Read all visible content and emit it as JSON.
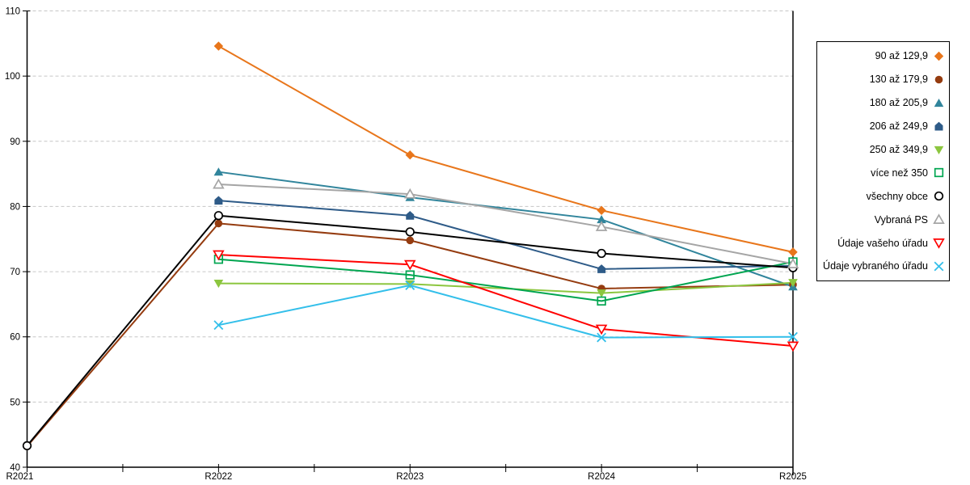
{
  "chart_data": {
    "type": "line",
    "title": "",
    "xlabel": "",
    "ylabel": "",
    "categories": [
      "R2021",
      "R2022",
      "R2023",
      "R2024",
      "R2025"
    ],
    "ylim": [
      40,
      110
    ],
    "ytick_step": 10,
    "yticks": [
      40,
      50,
      60,
      70,
      80,
      90,
      100,
      110
    ],
    "grid": "horizontal-dashed",
    "grid_color": "#c6c6c6",
    "axis_color": "#000000",
    "legend_position": "right",
    "series": [
      {
        "name": "90 až 129,9",
        "color": "#e8761b",
        "marker": "diamond",
        "filled": true,
        "values": [
          null,
          104.6,
          87.9,
          79.4,
          73.0
        ]
      },
      {
        "name": "130 až 179,9",
        "color": "#953c10",
        "marker": "circle",
        "filled": true,
        "values": [
          43.2,
          77.4,
          74.8,
          67.4,
          68.0
        ]
      },
      {
        "name": "180 až 205,9",
        "color": "#31859c",
        "marker": "triangle",
        "filled": true,
        "values": [
          null,
          85.3,
          81.4,
          78.0,
          67.7
        ]
      },
      {
        "name": "206 až 249,9",
        "color": "#2e5b88",
        "marker": "pentagon",
        "filled": true,
        "values": [
          null,
          80.9,
          78.6,
          70.4,
          70.9
        ]
      },
      {
        "name": "250 až 349,9",
        "color": "#8cc63f",
        "marker": "triangle-down",
        "filled": true,
        "values": [
          null,
          68.2,
          68.1,
          66.7,
          68.3
        ]
      },
      {
        "name": "více než 350",
        "color": "#00a550",
        "marker": "square",
        "filled": false,
        "values": [
          null,
          71.9,
          69.5,
          65.5,
          71.5
        ]
      },
      {
        "name": "všechny obce",
        "color": "#000000",
        "marker": "circle",
        "filled": false,
        "values": [
          43.3,
          78.6,
          76.1,
          72.8,
          70.6
        ]
      },
      {
        "name": "Vybraná PS",
        "color": "#a5a5a5",
        "marker": "triangle",
        "filled": false,
        "values": [
          null,
          83.4,
          81.9,
          76.9,
          71.2
        ]
      },
      {
        "name": "Údaje vašeho úřadu",
        "color": "#ff0000",
        "marker": "triangle-down",
        "filled": false,
        "values": [
          null,
          72.6,
          71.1,
          61.2,
          58.6
        ]
      },
      {
        "name": "Údaje vybraného úřadu",
        "color": "#33bfea",
        "marker": "x",
        "filled": false,
        "values": [
          null,
          61.8,
          67.9,
          59.9,
          60.0
        ]
      }
    ]
  }
}
